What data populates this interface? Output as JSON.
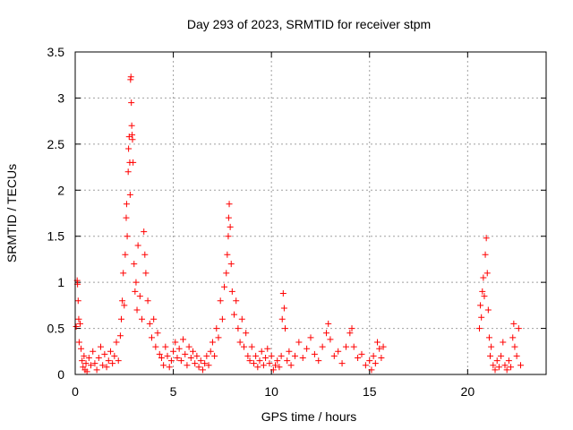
{
  "chart_data": {
    "type": "scatter",
    "title": "Day 293 of 2023, SRMTID for receiver stpm",
    "xlabel": "GPS time / hours",
    "ylabel": "SRMTID / TECUs",
    "xlim": [
      0,
      24
    ],
    "ylim": [
      0,
      3.5
    ],
    "x_ticks": [
      0,
      5,
      10,
      15,
      20
    ],
    "y_ticks": [
      0,
      0.5,
      1,
      1.5,
      2,
      2.5,
      3,
      3.5
    ],
    "x_tick_labels": [
      "0",
      "5",
      "10",
      "15",
      "20"
    ],
    "y_tick_labels": [
      "0",
      "0.5",
      "1",
      "1.5",
      "2",
      "2.5",
      "3",
      "3.5"
    ],
    "grid": true,
    "marker": "+",
    "color": "#ff0000",
    "series": [
      {
        "name": "stpm",
        "points": [
          [
            0.05,
            0.52
          ],
          [
            0.1,
            1.02
          ],
          [
            0.12,
            0.98
          ],
          [
            0.15,
            0.8
          ],
          [
            0.18,
            0.6
          ],
          [
            0.2,
            0.35
          ],
          [
            0.25,
            0.55
          ],
          [
            0.3,
            0.28
          ],
          [
            0.35,
            0.15
          ],
          [
            0.4,
            0.08
          ],
          [
            0.45,
            0.2
          ],
          [
            0.5,
            0.05
          ],
          [
            0.55,
            0.12
          ],
          [
            0.6,
            0.03
          ],
          [
            0.7,
            0.18
          ],
          [
            0.8,
            0.1
          ],
          [
            0.9,
            0.25
          ],
          [
            1.0,
            0.12
          ],
          [
            1.1,
            0.05
          ],
          [
            1.2,
            0.18
          ],
          [
            1.3,
            0.3
          ],
          [
            1.4,
            0.1
          ],
          [
            1.5,
            0.22
          ],
          [
            1.6,
            0.08
          ],
          [
            1.7,
            0.15
          ],
          [
            1.8,
            0.25
          ],
          [
            1.9,
            0.12
          ],
          [
            2.0,
            0.2
          ],
          [
            2.1,
            0.35
          ],
          [
            2.2,
            0.15
          ],
          [
            2.3,
            0.42
          ],
          [
            2.35,
            0.6
          ],
          [
            2.4,
            0.8
          ],
          [
            2.45,
            1.1
          ],
          [
            2.5,
            0.75
          ],
          [
            2.55,
            1.3
          ],
          [
            2.6,
            1.7
          ],
          [
            2.62,
            1.85
          ],
          [
            2.65,
            1.5
          ],
          [
            2.7,
            2.2
          ],
          [
            2.72,
            2.45
          ],
          [
            2.75,
            2.58
          ],
          [
            2.78,
            2.3
          ],
          [
            2.8,
            1.95
          ],
          [
            2.82,
            3.2
          ],
          [
            2.84,
            3.23
          ],
          [
            2.86,
            2.95
          ],
          [
            2.88,
            2.7
          ],
          [
            2.9,
            2.6
          ],
          [
            2.92,
            2.55
          ],
          [
            2.95,
            2.3
          ],
          [
            3.0,
            1.2
          ],
          [
            3.05,
            0.9
          ],
          [
            3.1,
            1.0
          ],
          [
            3.15,
            0.7
          ],
          [
            3.2,
            1.4
          ],
          [
            3.3,
            0.85
          ],
          [
            3.4,
            0.6
          ],
          [
            3.5,
            1.55
          ],
          [
            3.55,
            1.3
          ],
          [
            3.6,
            1.1
          ],
          [
            3.7,
            0.8
          ],
          [
            3.8,
            0.55
          ],
          [
            3.9,
            0.4
          ],
          [
            4.0,
            0.6
          ],
          [
            4.1,
            0.3
          ],
          [
            4.2,
            0.45
          ],
          [
            4.3,
            0.22
          ],
          [
            4.4,
            0.18
          ],
          [
            4.5,
            0.1
          ],
          [
            4.6,
            0.3
          ],
          [
            4.7,
            0.2
          ],
          [
            4.8,
            0.08
          ],
          [
            4.9,
            0.15
          ],
          [
            5.0,
            0.25
          ],
          [
            5.1,
            0.35
          ],
          [
            5.2,
            0.18
          ],
          [
            5.3,
            0.28
          ],
          [
            5.4,
            0.15
          ],
          [
            5.5,
            0.38
          ],
          [
            5.6,
            0.22
          ],
          [
            5.7,
            0.1
          ],
          [
            5.8,
            0.3
          ],
          [
            5.9,
            0.18
          ],
          [
            6.0,
            0.25
          ],
          [
            6.1,
            0.12
          ],
          [
            6.2,
            0.2
          ],
          [
            6.3,
            0.08
          ],
          [
            6.4,
            0.15
          ],
          [
            6.5,
            0.05
          ],
          [
            6.6,
            0.12
          ],
          [
            6.7,
            0.2
          ],
          [
            6.8,
            0.1
          ],
          [
            6.9,
            0.25
          ],
          [
            7.0,
            0.35
          ],
          [
            7.1,
            0.2
          ],
          [
            7.2,
            0.5
          ],
          [
            7.3,
            0.4
          ],
          [
            7.4,
            0.8
          ],
          [
            7.5,
            0.6
          ],
          [
            7.6,
            0.95
          ],
          [
            7.7,
            1.1
          ],
          [
            7.75,
            1.3
          ],
          [
            7.8,
            1.5
          ],
          [
            7.82,
            1.7
          ],
          [
            7.85,
            1.85
          ],
          [
            7.9,
            1.6
          ],
          [
            7.95,
            1.2
          ],
          [
            8.0,
            0.9
          ],
          [
            8.1,
            0.65
          ],
          [
            8.2,
            0.8
          ],
          [
            8.3,
            0.5
          ],
          [
            8.4,
            0.35
          ],
          [
            8.5,
            0.6
          ],
          [
            8.6,
            0.3
          ],
          [
            8.7,
            0.45
          ],
          [
            8.8,
            0.2
          ],
          [
            8.9,
            0.15
          ],
          [
            9.0,
            0.3
          ],
          [
            9.1,
            0.12
          ],
          [
            9.2,
            0.2
          ],
          [
            9.3,
            0.08
          ],
          [
            9.4,
            0.15
          ],
          [
            9.5,
            0.25
          ],
          [
            9.6,
            0.1
          ],
          [
            9.7,
            0.18
          ],
          [
            9.8,
            0.28
          ],
          [
            9.9,
            0.12
          ],
          [
            10.0,
            0.2
          ],
          [
            10.1,
            0.05
          ],
          [
            10.2,
            0.1
          ],
          [
            10.3,
            0.15
          ],
          [
            10.4,
            0.08
          ],
          [
            10.5,
            0.2
          ],
          [
            10.55,
            0.6
          ],
          [
            10.6,
            0.88
          ],
          [
            10.65,
            0.72
          ],
          [
            10.7,
            0.5
          ],
          [
            10.8,
            0.15
          ],
          [
            10.9,
            0.25
          ],
          [
            11.0,
            0.1
          ],
          [
            11.2,
            0.2
          ],
          [
            11.4,
            0.35
          ],
          [
            11.6,
            0.18
          ],
          [
            11.8,
            0.28
          ],
          [
            12.0,
            0.4
          ],
          [
            12.2,
            0.22
          ],
          [
            12.4,
            0.15
          ],
          [
            12.6,
            0.3
          ],
          [
            12.8,
            0.45
          ],
          [
            12.9,
            0.55
          ],
          [
            13.0,
            0.38
          ],
          [
            13.2,
            0.2
          ],
          [
            13.4,
            0.25
          ],
          [
            13.6,
            0.12
          ],
          [
            13.8,
            0.3
          ],
          [
            14.0,
            0.45
          ],
          [
            14.1,
            0.5
          ],
          [
            14.2,
            0.3
          ],
          [
            14.4,
            0.18
          ],
          [
            14.6,
            0.22
          ],
          [
            14.8,
            0.1
          ],
          [
            15.0,
            0.15
          ],
          [
            15.1,
            0.05
          ],
          [
            15.2,
            0.2
          ],
          [
            15.3,
            0.12
          ],
          [
            15.4,
            0.35
          ],
          [
            15.5,
            0.28
          ],
          [
            15.6,
            0.18
          ],
          [
            15.7,
            0.3
          ],
          [
            20.6,
            0.5
          ],
          [
            20.65,
            0.75
          ],
          [
            20.7,
            0.62
          ],
          [
            20.75,
            0.9
          ],
          [
            20.8,
            1.05
          ],
          [
            20.85,
            0.85
          ],
          [
            20.9,
            1.3
          ],
          [
            20.95,
            1.48
          ],
          [
            21.0,
            1.1
          ],
          [
            21.05,
            0.7
          ],
          [
            21.1,
            0.4
          ],
          [
            21.15,
            0.2
          ],
          [
            21.2,
            0.3
          ],
          [
            21.3,
            0.1
          ],
          [
            21.4,
            0.05
          ],
          [
            21.5,
            0.15
          ],
          [
            21.6,
            0.08
          ],
          [
            21.7,
            0.2
          ],
          [
            21.8,
            0.35
          ],
          [
            21.9,
            0.1
          ],
          [
            22.0,
            0.05
          ],
          [
            22.1,
            0.15
          ],
          [
            22.2,
            0.08
          ],
          [
            22.3,
            0.4
          ],
          [
            22.35,
            0.55
          ],
          [
            22.4,
            0.3
          ],
          [
            22.5,
            0.2
          ],
          [
            22.6,
            0.5
          ],
          [
            22.7,
            0.1
          ]
        ]
      }
    ]
  }
}
